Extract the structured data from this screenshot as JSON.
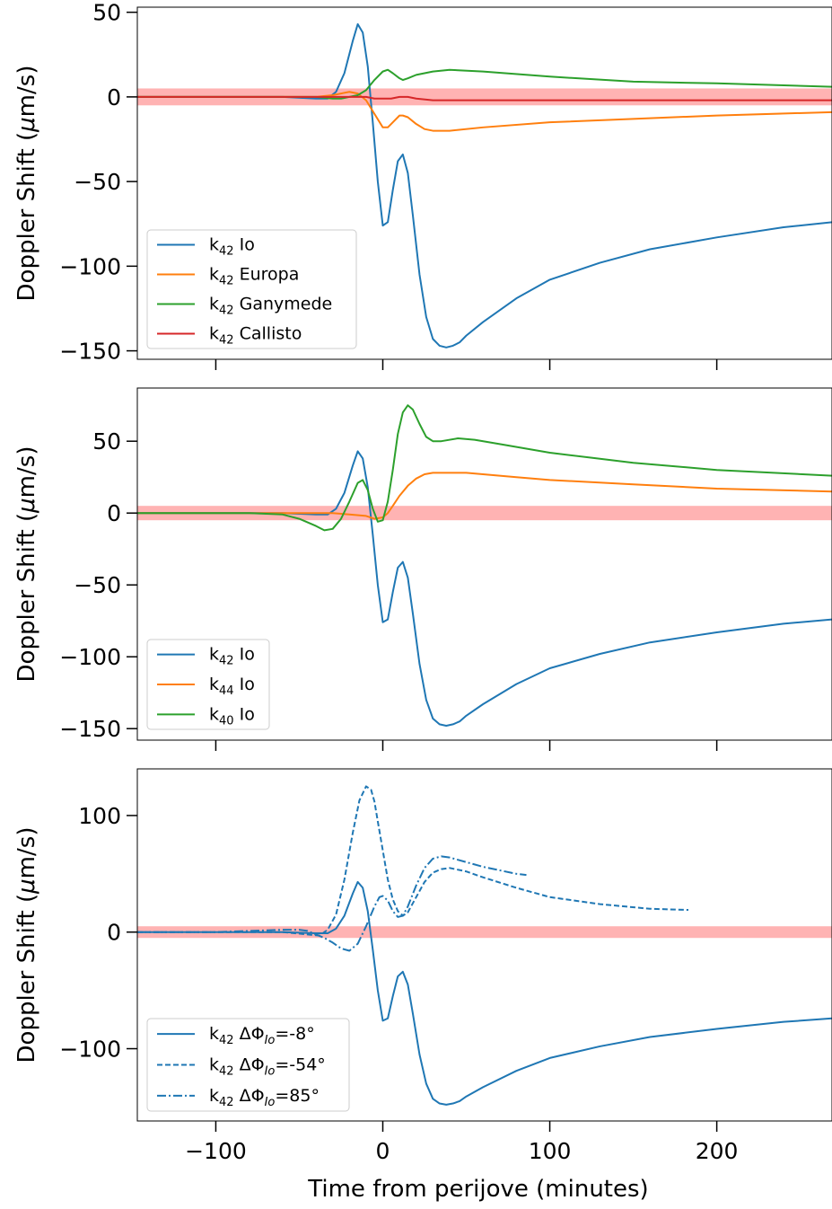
{
  "chart_data": [
    {
      "type": "line",
      "ylabel": "Doppler Shift (μm/s)",
      "xlabel": "",
      "xlim": [
        -147,
        269
      ],
      "ylim": [
        -155,
        53
      ],
      "yticks": [
        50,
        0,
        -50,
        -100,
        -150
      ],
      "yticklabels": [
        "50",
        "0",
        "−50",
        "−100",
        "−150"
      ],
      "xticks": [
        -100,
        0,
        100,
        200
      ],
      "xticklabels": [],
      "noise_band": [
        -5,
        5
      ],
      "noise_band_color": "#ffb3b3",
      "legend_position": "lower-left",
      "series": [
        {
          "name": "k42 Io",
          "color": "#1f77b4",
          "style": "solid",
          "x": [
            -147,
            -60,
            -40,
            -33,
            -28,
            -23,
            -18,
            -15,
            -12,
            -9,
            -6,
            -3,
            0,
            3,
            6,
            9,
            12,
            15,
            18,
            22,
            26,
            30,
            34,
            38,
            42,
            46,
            50,
            60,
            80,
            100,
            130,
            160,
            200,
            240,
            269
          ],
          "y": [
            0,
            0,
            -1,
            -1,
            3,
            14,
            33,
            43,
            38,
            18,
            -15,
            -50,
            -76,
            -74,
            -55,
            -38,
            -34,
            -45,
            -70,
            -105,
            -130,
            -143,
            -147,
            -148,
            -147,
            -145,
            -141,
            -133,
            -119,
            -108,
            -98,
            -90,
            -83,
            -77,
            -74
          ]
        },
        {
          "name": "k42 Europa",
          "color": "#ff7f0e",
          "style": "solid",
          "x": [
            -147,
            -40,
            -30,
            -25,
            -20,
            -15,
            -10,
            -5,
            0,
            3,
            6,
            10,
            12,
            15,
            20,
            25,
            30,
            40,
            60,
            100,
            150,
            200,
            269
          ],
          "y": [
            0,
            0,
            1,
            2,
            3,
            2,
            -2,
            -10,
            -18,
            -18,
            -15,
            -11,
            -11,
            -12,
            -16,
            -19,
            -20,
            -20,
            -18,
            -15,
            -13,
            -11,
            -9
          ]
        },
        {
          "name": "k42 Ganymede",
          "color": "#2ca02c",
          "style": "solid",
          "x": [
            -147,
            -40,
            -30,
            -25,
            -20,
            -15,
            -10,
            -5,
            0,
            3,
            6,
            10,
            12,
            15,
            20,
            30,
            40,
            60,
            100,
            150,
            200,
            269
          ],
          "y": [
            0,
            0,
            -1,
            -1,
            0,
            1,
            4,
            10,
            15,
            16,
            14,
            11,
            10,
            11,
            13,
            15,
            16,
            15,
            12,
            9,
            8,
            6
          ]
        },
        {
          "name": "k42 Callisto",
          "color": "#d62728",
          "style": "solid",
          "x": [
            -147,
            -60,
            -40,
            -30,
            -20,
            -15,
            -10,
            -5,
            0,
            5,
            10,
            15,
            20,
            30,
            50,
            100,
            150,
            200,
            269
          ],
          "y": [
            0,
            0,
            0,
            0,
            0,
            0,
            0,
            -1,
            -1,
            -1,
            0,
            0,
            -1,
            -2,
            -2,
            -2,
            -2,
            -2,
            -2
          ]
        }
      ]
    },
    {
      "type": "line",
      "ylabel": "Doppler Shift (μm/s)",
      "xlabel": "",
      "xlim": [
        -147,
        269
      ],
      "ylim": [
        -158,
        87
      ],
      "yticks": [
        50,
        0,
        -50,
        -100,
        -150
      ],
      "yticklabels": [
        "50",
        "0",
        "−50",
        "−100",
        "−150"
      ],
      "xticks": [
        -100,
        0,
        100,
        200
      ],
      "xticklabels": [],
      "noise_band": [
        -5,
        5
      ],
      "noise_band_color": "#ffb3b3",
      "legend_position": "lower-left",
      "series": [
        {
          "name": "k42 Io",
          "color": "#1f77b4",
          "style": "solid",
          "x": [
            -147,
            -60,
            -40,
            -33,
            -28,
            -23,
            -18,
            -15,
            -12,
            -9,
            -6,
            -3,
            0,
            3,
            6,
            9,
            12,
            15,
            18,
            22,
            26,
            30,
            34,
            38,
            42,
            46,
            50,
            60,
            80,
            100,
            130,
            160,
            200,
            240,
            269
          ],
          "y": [
            0,
            0,
            -1,
            -1,
            3,
            14,
            33,
            43,
            38,
            18,
            -15,
            -50,
            -76,
            -74,
            -55,
            -38,
            -34,
            -45,
            -70,
            -105,
            -130,
            -143,
            -147,
            -148,
            -147,
            -145,
            -141,
            -133,
            -119,
            -108,
            -98,
            -90,
            -83,
            -77,
            -74
          ]
        },
        {
          "name": "k44 Io",
          "color": "#ff7f0e",
          "style": "solid",
          "x": [
            -147,
            -60,
            -40,
            -30,
            -20,
            -10,
            -5,
            0,
            3,
            6,
            10,
            15,
            20,
            25,
            30,
            40,
            50,
            60,
            80,
            100,
            150,
            200,
            269
          ],
          "y": [
            0,
            0,
            0,
            0,
            -1,
            -2,
            -4,
            -3,
            0,
            5,
            12,
            19,
            24,
            27,
            28,
            28,
            28,
            27,
            25,
            23,
            20,
            17,
            15
          ]
        },
        {
          "name": "k40 Io",
          "color": "#2ca02c",
          "style": "solid",
          "x": [
            -147,
            -80,
            -60,
            -50,
            -40,
            -35,
            -30,
            -25,
            -20,
            -15,
            -12,
            -9,
            -6,
            -3,
            0,
            3,
            6,
            9,
            12,
            15,
            18,
            22,
            26,
            30,
            35,
            45,
            55,
            70,
            100,
            150,
            200,
            269
          ],
          "y": [
            0,
            0,
            -1,
            -4,
            -9,
            -12,
            -11,
            -4,
            8,
            21,
            23,
            16,
            3,
            -6,
            -5,
            8,
            30,
            55,
            70,
            75,
            72,
            62,
            53,
            50,
            50,
            52,
            51,
            48,
            42,
            35,
            30,
            26
          ]
        }
      ]
    },
    {
      "type": "line",
      "ylabel": "Doppler Shift (μm/s)",
      "xlabel": "Time from perijove (minutes)",
      "xlim": [
        -147,
        269
      ],
      "ylim": [
        -162,
        140
      ],
      "yticks": [
        100,
        0,
        -100
      ],
      "yticklabels": [
        "100",
        "0",
        "−100"
      ],
      "xticks": [
        -100,
        0,
        100,
        200
      ],
      "xticklabels": [
        "−100",
        "0",
        "100",
        "200"
      ],
      "noise_band": [
        -5,
        5
      ],
      "noise_band_color": "#ffb3b3",
      "legend_position": "lower-left",
      "series": [
        {
          "name": "k42 ΔΦIo=-8°",
          "color": "#1f77b4",
          "style": "solid",
          "x": [
            -147,
            -60,
            -40,
            -33,
            -28,
            -23,
            -18,
            -15,
            -12,
            -9,
            -6,
            -3,
            0,
            3,
            6,
            9,
            12,
            15,
            18,
            22,
            26,
            30,
            34,
            38,
            42,
            46,
            50,
            60,
            80,
            100,
            130,
            160,
            200,
            240,
            269
          ],
          "y": [
            0,
            0,
            -1,
            -1,
            3,
            14,
            33,
            43,
            38,
            18,
            -15,
            -50,
            -76,
            -74,
            -55,
            -38,
            -34,
            -45,
            -70,
            -105,
            -130,
            -143,
            -147,
            -148,
            -147,
            -145,
            -141,
            -133,
            -119,
            -108,
            -98,
            -90,
            -83,
            -77,
            -74
          ]
        },
        {
          "name": "k42 ΔΦIo=-54°",
          "color": "#1f77b4",
          "style": "dashed",
          "x": [
            -147,
            -60,
            -45,
            -38,
            -33,
            -28,
            -23,
            -18,
            -14,
            -10,
            -7,
            -5,
            -3,
            0,
            3,
            6,
            9,
            12,
            15,
            20,
            25,
            30,
            35,
            40,
            50,
            60,
            80,
            100,
            130,
            160,
            183
          ],
          "y": [
            0,
            0,
            -2,
            -3,
            2,
            15,
            45,
            85,
            113,
            125,
            122,
            112,
            95,
            70,
            45,
            28,
            18,
            14,
            17,
            30,
            43,
            51,
            54,
            55,
            52,
            47,
            38,
            30,
            24,
            20,
            19
          ]
        },
        {
          "name": "k42 ΔΦIo=85°",
          "color": "#1f77b4",
          "style": "dashdot",
          "x": [
            -147,
            -100,
            -80,
            -60,
            -50,
            -45,
            -40,
            -35,
            -30,
            -25,
            -20,
            -15,
            -10,
            -5,
            -2,
            0,
            3,
            6,
            9,
            12,
            15,
            20,
            25,
            30,
            35,
            40,
            50,
            60,
            70,
            80,
            86
          ],
          "y": [
            0,
            0,
            1,
            2,
            2,
            1,
            -2,
            -5,
            -9,
            -14,
            -16,
            -10,
            5,
            22,
            30,
            31,
            27,
            18,
            13,
            14,
            22,
            40,
            55,
            63,
            65,
            64,
            60,
            56,
            53,
            50,
            49
          ]
        }
      ]
    }
  ]
}
